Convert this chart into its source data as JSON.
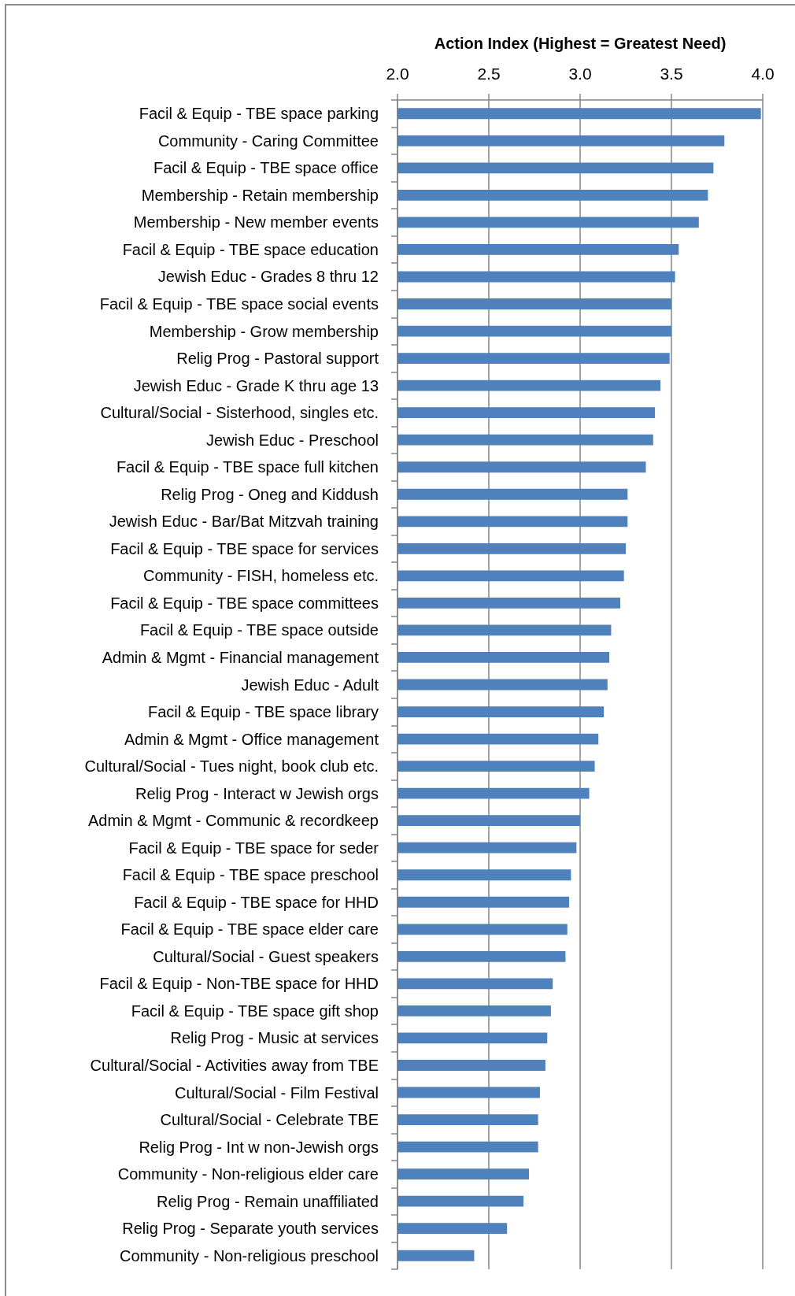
{
  "chart_data": {
    "type": "bar",
    "orientation": "horizontal",
    "xlabel": "Action Index (Highest = Greatest Need)",
    "categories": [
      "Facil & Equip - TBE space parking",
      "Community - Caring Committee",
      "Facil & Equip - TBE space office",
      "Membership - Retain membership",
      "Membership - New member events",
      "Facil & Equip - TBE space education",
      "Jewish Educ - Grades 8 thru 12",
      "Facil & Equip - TBE space social events",
      "Membership - Grow membership",
      "Relig Prog - Pastoral support",
      "Jewish Educ - Grade K thru age 13",
      "Cultural/Social - Sisterhood, singles etc.",
      "Jewish Educ - Preschool",
      "Facil & Equip - TBE space full kitchen",
      "Relig Prog - Oneg and Kiddush",
      "Jewish Educ - Bar/Bat Mitzvah training",
      "Facil & Equip - TBE space for services",
      "Community - FISH, homeless etc.",
      "Facil & Equip - TBE space committees",
      "Facil & Equip - TBE space outside",
      "Admin & Mgmt - Financial management",
      "Jewish Educ - Adult",
      "Facil & Equip - TBE space library",
      "Admin & Mgmt - Office management",
      "Cultural/Social - Tues night, book club etc.",
      "Relig Prog - Interact w Jewish orgs",
      "Admin & Mgmt - Communic & recordkeep",
      "Facil & Equip - TBE space for seder",
      "Facil & Equip - TBE space preschool",
      "Facil & Equip - TBE space for HHD",
      "Facil & Equip - TBE space elder care",
      "Cultural/Social - Guest speakers",
      "Facil & Equip - Non-TBE space for HHD",
      "Facil & Equip - TBE space gift shop",
      "Relig Prog - Music at services",
      "Cultural/Social - Activities away from TBE",
      "Cultural/Social - Film Festival",
      "Cultural/Social - Celebrate TBE",
      "Relig Prog - Int w non-Jewish orgs",
      "Community - Non-religious elder care",
      "Relig Prog - Remain unaffiliated",
      "Relig Prog - Separate youth services",
      "Community - Non-religious preschool"
    ],
    "values": [
      3.99,
      3.79,
      3.73,
      3.7,
      3.65,
      3.54,
      3.52,
      3.5,
      3.5,
      3.49,
      3.44,
      3.41,
      3.4,
      3.36,
      3.26,
      3.26,
      3.25,
      3.24,
      3.22,
      3.17,
      3.16,
      3.15,
      3.13,
      3.1,
      3.08,
      3.05,
      3.0,
      2.98,
      2.95,
      2.94,
      2.93,
      2.92,
      2.85,
      2.84,
      2.82,
      2.81,
      2.78,
      2.77,
      2.77,
      2.72,
      2.69,
      2.6,
      2.42
    ],
    "color": "#4f81bd",
    "xlim": [
      2,
      4
    ],
    "xticks": [
      {
        "value": 2,
        "label": "2.0"
      },
      2.5,
      {
        "value": 3,
        "label": "3.0"
      },
      3.5,
      {
        "value": 4,
        "label": "4.0"
      }
    ],
    "grid": "x"
  }
}
